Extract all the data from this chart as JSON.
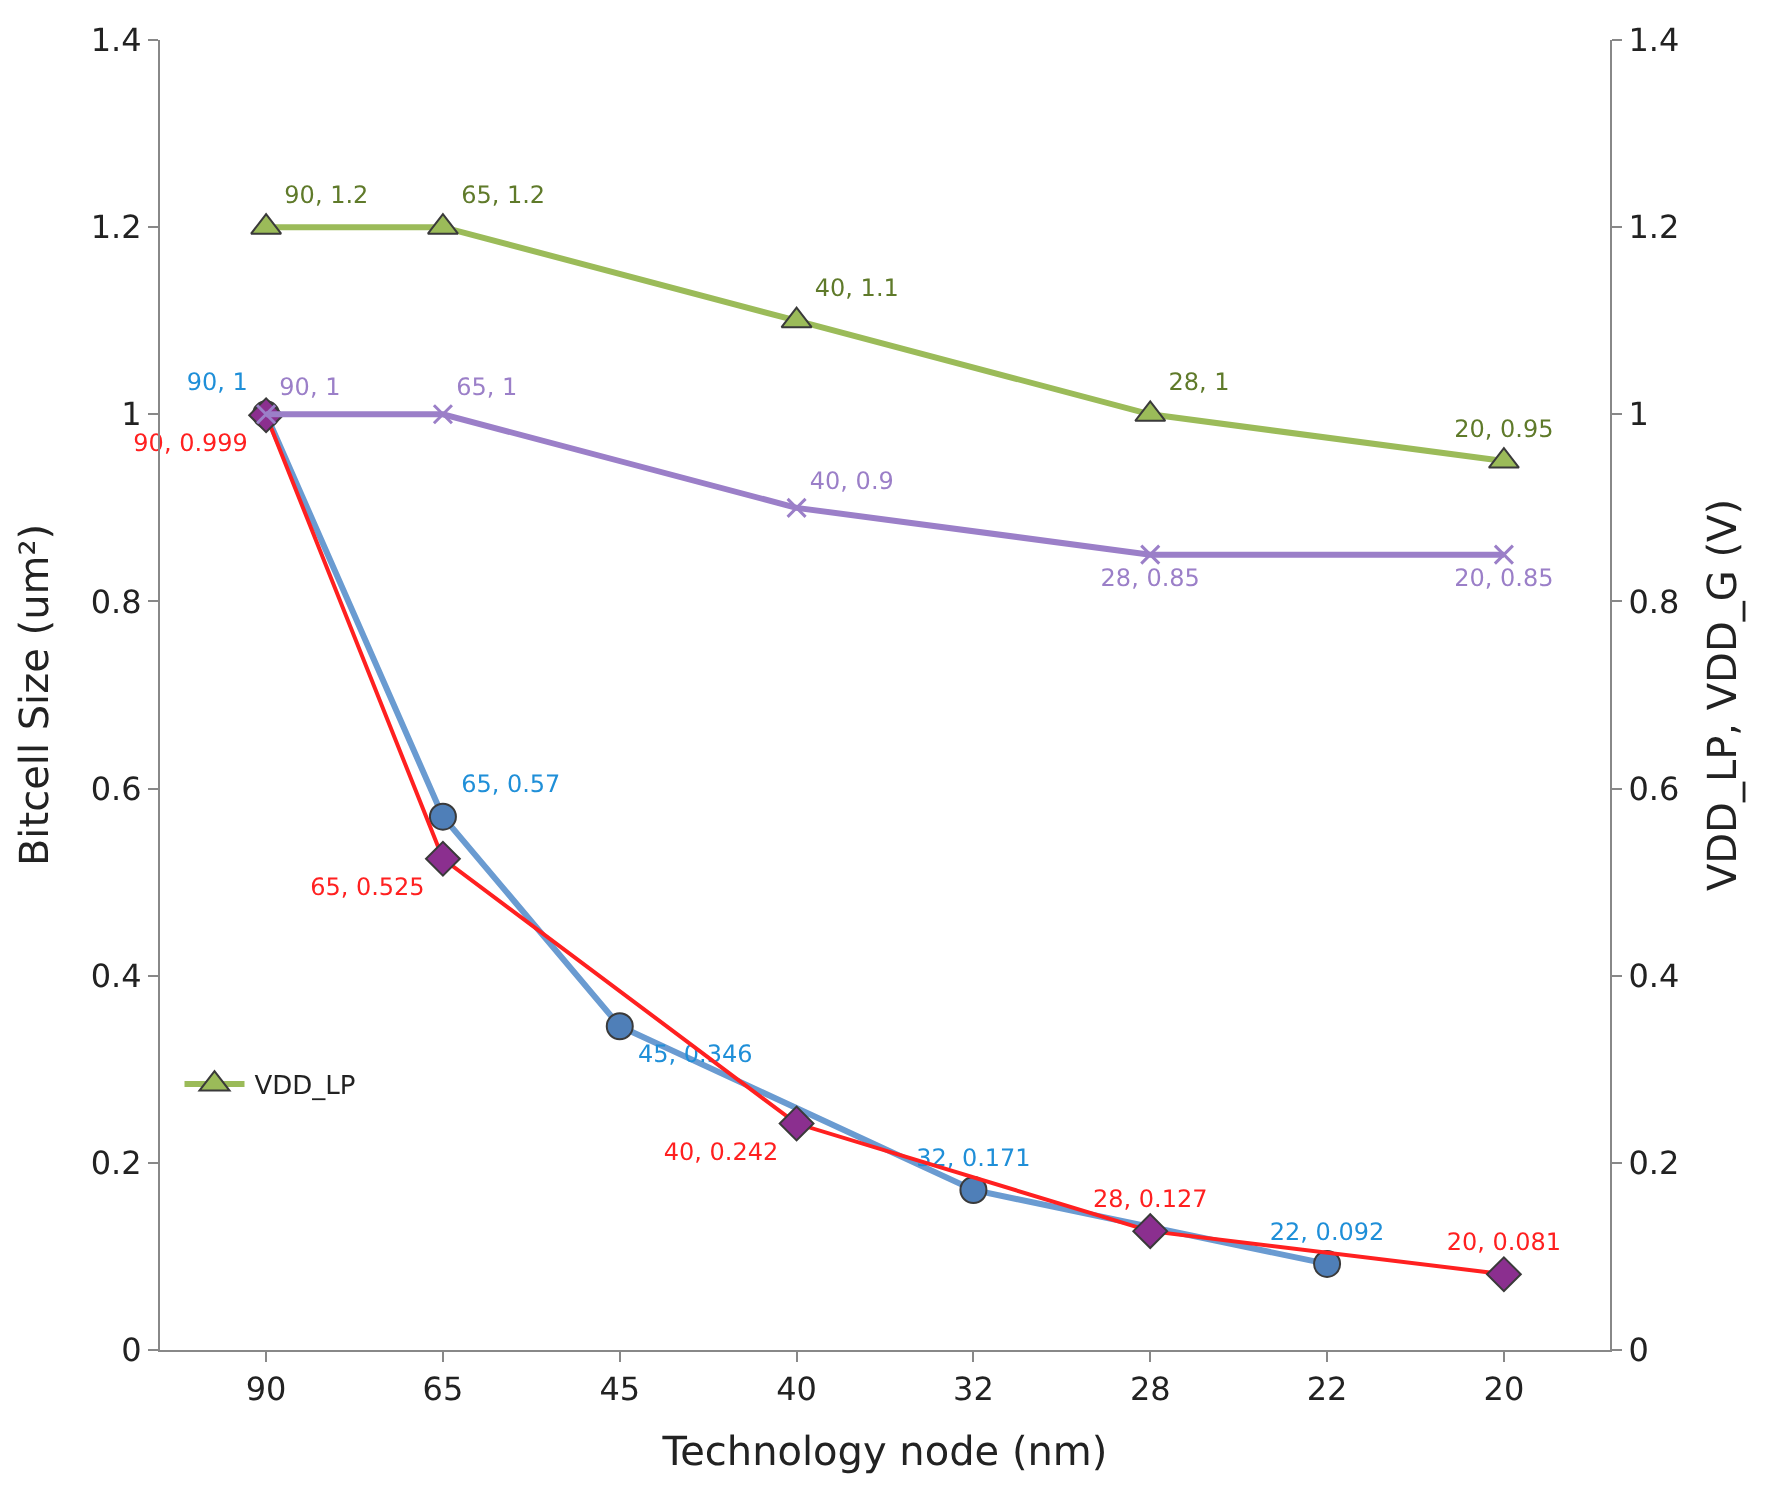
{
  "chart_data": {
    "type": "line",
    "xlabel": "Technology node (nm)",
    "ylabel": "Bitcell Size (um²)",
    "y2label": "VDD_LP, VDD_G (V)",
    "categories": [
      "90",
      "65",
      "45",
      "40",
      "32",
      "28",
      "22",
      "20"
    ],
    "series": [
      {
        "color": "#6a9bd1",
        "colors": [
          "#4f7fb8",
          "#4f7fb8",
          "#4f7fb8",
          null,
          "#4f7fb8",
          null,
          "#4f7fb8",
          null
        ],
        "marker": "circle",
        "values": [
          1,
          0.57,
          0.346,
          null,
          0.171,
          null,
          0.092,
          null
        ],
        "value_labels": [
          "90, 1",
          "65, 0.57",
          "45, 0.346",
          null,
          "32, 0.171",
          null,
          "22, 0.092",
          null
        ]
      },
      {
        "color": "#ff2020",
        "colors": [
          "#8b2f8f",
          "#8b2f8f",
          null,
          "#8b2f8f",
          null,
          "#8b2f8f",
          null,
          "#8b2f8f"
        ],
        "marker": "diamond",
        "values": [
          0.999,
          0.525,
          null,
          0.242,
          null,
          0.127,
          null,
          0.081
        ],
        "value_labels": [
          "90, 0.999",
          "65, 0.525",
          null,
          "40, 0.242",
          null,
          "28, 0.127",
          null,
          "20, 0.081"
        ]
      },
      {
        "name": "VDD_LP",
        "axis": "y2",
        "color": "#9bbb59",
        "marker": "triangle",
        "values": [
          1.2,
          1.2,
          null,
          1.1,
          null,
          1,
          null,
          0.95
        ],
        "value_labels": [
          "90, 1.2",
          "65, 1.2",
          null,
          "40, 1.1",
          null,
          "28, 1",
          null,
          "20, 0.95"
        ]
      },
      {
        "axis": "y2",
        "color": "#9b7fc8",
        "marker": "cross",
        "values": [
          1,
          1,
          null,
          0.9,
          null,
          0.85,
          null,
          0.85
        ],
        "value_labels": [
          "90, 1",
          "65, 1",
          null,
          "40, 0.9",
          null,
          "28, 0.85",
          null,
          "20, 0.85"
        ]
      }
    ],
    "ylim": [
      0,
      1.4
    ],
    "yticks": [
      0,
      0.2,
      0.4,
      0.6,
      0.8,
      1,
      1.2,
      1.4
    ],
    "y2lim": [
      0,
      1.4
    ],
    "y2ticks": [
      0,
      0.2,
      0.4,
      0.6,
      0.8,
      1,
      1.2,
      1.4
    ],
    "legend": "bottom left"
  }
}
